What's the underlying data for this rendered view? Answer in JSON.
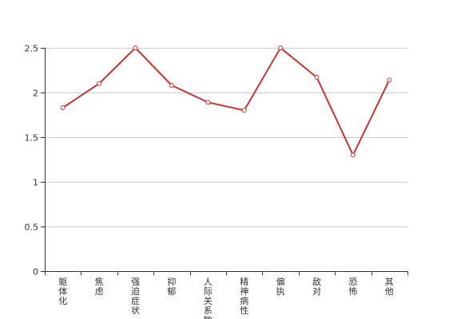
{
  "chart_data": {
    "type": "line",
    "categories": [
      "躯体化",
      "焦虑",
      "强迫症状",
      "抑郁",
      "人际关系敏感",
      "精神病性",
      "偏执",
      "敌对",
      "恐怖",
      "其他"
    ],
    "series": [
      {
        "values": [
          1.83,
          2.1,
          2.5,
          2.08,
          1.89,
          1.8,
          2.5,
          2.17,
          1.3,
          2.14
        ]
      }
    ],
    "yticks": [
      "0",
      "0.5",
      "1",
      "1.5",
      "2",
      "2.5"
    ],
    "ylim": [
      0,
      2.5
    ],
    "grid": true,
    "legend": "none",
    "colors": {
      "line": "#c23531",
      "grid": "#cccccc",
      "axis": "#333333",
      "marker_fill": "#ffffff"
    }
  }
}
